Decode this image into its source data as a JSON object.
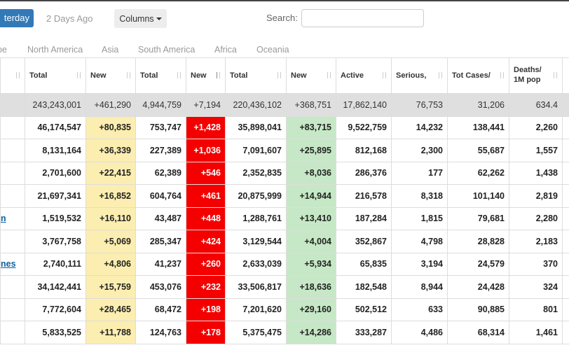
{
  "toolbar": {
    "yesterday_label": "terday",
    "two_days_label": "2 Days Ago",
    "columns_label": "Columns",
    "search_label": "Search:",
    "search_value": ""
  },
  "region_tabs": [
    "pe",
    "North America",
    "Asia",
    "South America",
    "Africa",
    "Oceania"
  ],
  "table": {
    "headers": [
      "Total",
      "New",
      "Total",
      "New",
      "Total",
      "New",
      "Active",
      "Serious,",
      "Tot Cases/",
      "Deaths/",
      "1M pop"
    ],
    "total_row": [
      "243,243,001",
      "+461,290",
      "4,944,759",
      "+7,194",
      "220,436,102",
      "+368,751",
      "17,862,140",
      "76,753",
      "31,206",
      "634.4"
    ],
    "rows": [
      {
        "country": "",
        "cells": [
          "46,174,547",
          "+80,835",
          "753,747",
          "+1,428",
          "35,898,041",
          "+83,715",
          "9,522,759",
          "14,232",
          "138,441",
          "2,260"
        ]
      },
      {
        "country": "",
        "cells": [
          "8,131,164",
          "+36,339",
          "227,389",
          "+1,036",
          "7,091,607",
          "+25,895",
          "812,168",
          "2,300",
          "55,687",
          "1,557"
        ]
      },
      {
        "country": "",
        "cells": [
          "2,701,600",
          "+22,415",
          "62,389",
          "+546",
          "2,352,835",
          "+8,036",
          "286,376",
          "177",
          "62,262",
          "1,438"
        ]
      },
      {
        "country": "",
        "cells": [
          "21,697,341",
          "+16,852",
          "604,764",
          "+461",
          "20,875,999",
          "+14,944",
          "216,578",
          "8,318",
          "101,140",
          "2,819"
        ]
      },
      {
        "country": "n",
        "cells": [
          "1,519,532",
          "+16,110",
          "43,487",
          "+448",
          "1,288,761",
          "+13,410",
          "187,284",
          "1,815",
          "79,681",
          "2,280"
        ]
      },
      {
        "country": "",
        "cells": [
          "3,767,758",
          "+5,069",
          "285,347",
          "+424",
          "3,129,544",
          "+4,004",
          "352,867",
          "4,798",
          "28,828",
          "2,183"
        ]
      },
      {
        "country": "nes",
        "cells": [
          "2,740,111",
          "+4,806",
          "41,237",
          "+260",
          "2,633,039",
          "+5,934",
          "65,835",
          "3,194",
          "24,579",
          "370"
        ]
      },
      {
        "country": "",
        "cells": [
          "34,142,441",
          "+15,759",
          "453,076",
          "+232",
          "33,506,817",
          "+18,636",
          "182,548",
          "8,944",
          "24,428",
          "324"
        ]
      },
      {
        "country": "",
        "cells": [
          "7,772,604",
          "+28,465",
          "68,472",
          "+198",
          "7,201,620",
          "+29,160",
          "502,512",
          "633",
          "90,885",
          "801"
        ]
      },
      {
        "country": "",
        "cells": [
          "5,833,525",
          "+11,788",
          "124,763",
          "+178",
          "5,375,475",
          "+14,286",
          "333,287",
          "4,486",
          "68,314",
          "1,461"
        ]
      }
    ]
  },
  "colors": {
    "new_cases_bg": "#fbeeb0",
    "new_deaths_bg": "#f40000",
    "new_recovered_bg": "#c6e8c6",
    "total_row_bg": "#dfdfdf",
    "accent_button": "#3279b7"
  }
}
